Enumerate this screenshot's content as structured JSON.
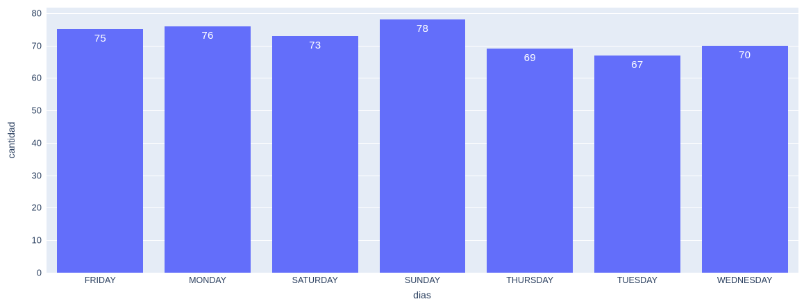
{
  "chart_data": {
    "type": "bar",
    "title": "",
    "categories": [
      "FRIDAY",
      "MONDAY",
      "SATURDAY",
      "SUNDAY",
      "THURSDAY",
      "TUESDAY",
      "WEDNESDAY"
    ],
    "values": [
      75,
      76,
      73,
      78,
      69,
      67,
      70
    ],
    "xlabel": "dias",
    "ylabel": "cantidad",
    "yticks": [
      0,
      10,
      20,
      30,
      40,
      50,
      60,
      70,
      80
    ],
    "ylim": [
      0,
      81.7
    ],
    "bargap": 0.2,
    "grid": true,
    "legend": "none",
    "bar_label_position": "inside-top",
    "colors": {
      "bar": "#636efa",
      "bar_label_text": "#ffffff",
      "plot_background": "#e5ecf6",
      "page_background": "#ffffff",
      "gridline": "#ffffff",
      "axis_text": "#2a3f5f"
    }
  }
}
